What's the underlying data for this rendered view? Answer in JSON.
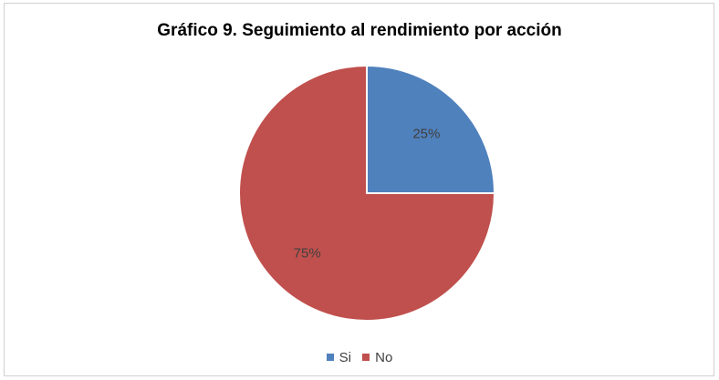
{
  "chart_data": {
    "type": "pie",
    "title": "Gráfico 9. Seguimiento al rendimiento por acción",
    "categories": [
      "Si",
      "No"
    ],
    "values": [
      25,
      75
    ],
    "data_labels": [
      "25%",
      "75%"
    ],
    "colors": [
      "#4f81bd",
      "#c0504d"
    ],
    "legend_position": "bottom"
  }
}
